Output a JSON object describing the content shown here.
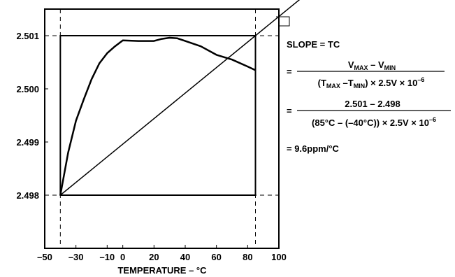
{
  "chart_data": {
    "type": "line",
    "xlabel": "TEMPERATURE – °C",
    "ylabel": "",
    "xlim": [
      -50,
      100
    ],
    "ylim": [
      2.497,
      2.5015
    ],
    "x_ticks": [
      -50,
      -30,
      -10,
      0,
      20,
      40,
      60,
      80,
      100
    ],
    "x_tick_labels": [
      "–50",
      "–30",
      "–10",
      "0",
      "20",
      "40",
      "60",
      "80",
      "100"
    ],
    "y_ticks": [
      2.498,
      2.499,
      2.5,
      2.501
    ],
    "y_tick_labels": [
      "2.498",
      "2.499",
      "2.500",
      "2.501"
    ],
    "grid": false,
    "series": [
      {
        "x": [
          -40,
          -35,
          -30,
          -25,
          -20,
          -15,
          -10,
          -5,
          0,
          10,
          20,
          25,
          30,
          35,
          40,
          50,
          60,
          70,
          80,
          85
        ],
        "y": [
          2.498,
          2.4988,
          2.4994,
          2.4998,
          2.50018,
          2.50048,
          2.50067,
          2.5008,
          2.50091,
          2.5009,
          2.5009,
          2.50094,
          2.50096,
          2.50095,
          2.5009,
          2.5008,
          2.50064,
          2.50055,
          2.50042,
          2.50035
        ]
      }
    ],
    "slope_line": {
      "x": [
        -40,
        85
      ],
      "y": [
        2.498,
        2.501
      ]
    },
    "box": {
      "x": [
        -40,
        85
      ],
      "y": [
        2.498,
        2.501
      ]
    }
  },
  "equation": {
    "slope_label": "SLOPE = TC",
    "line1": {
      "eq": "=",
      "num_v": "V",
      "num_vsub1": "MAX",
      "num_mid": " – V",
      "num_vsub2": "MIN",
      "den_open": "(T",
      "den_sub1": "MAX",
      "den_mid": " –T",
      "den_sub2": "MIN",
      "den_tail": ") × 2.5V × 10",
      "den_exp": "–6"
    },
    "line2": {
      "eq": "=",
      "num": "2.501 – 2.498",
      "den": "(85°C – (–40°C)) × 2.5V × 10",
      "den_exp": "–6"
    },
    "result": "= 9.6ppm/°C"
  }
}
